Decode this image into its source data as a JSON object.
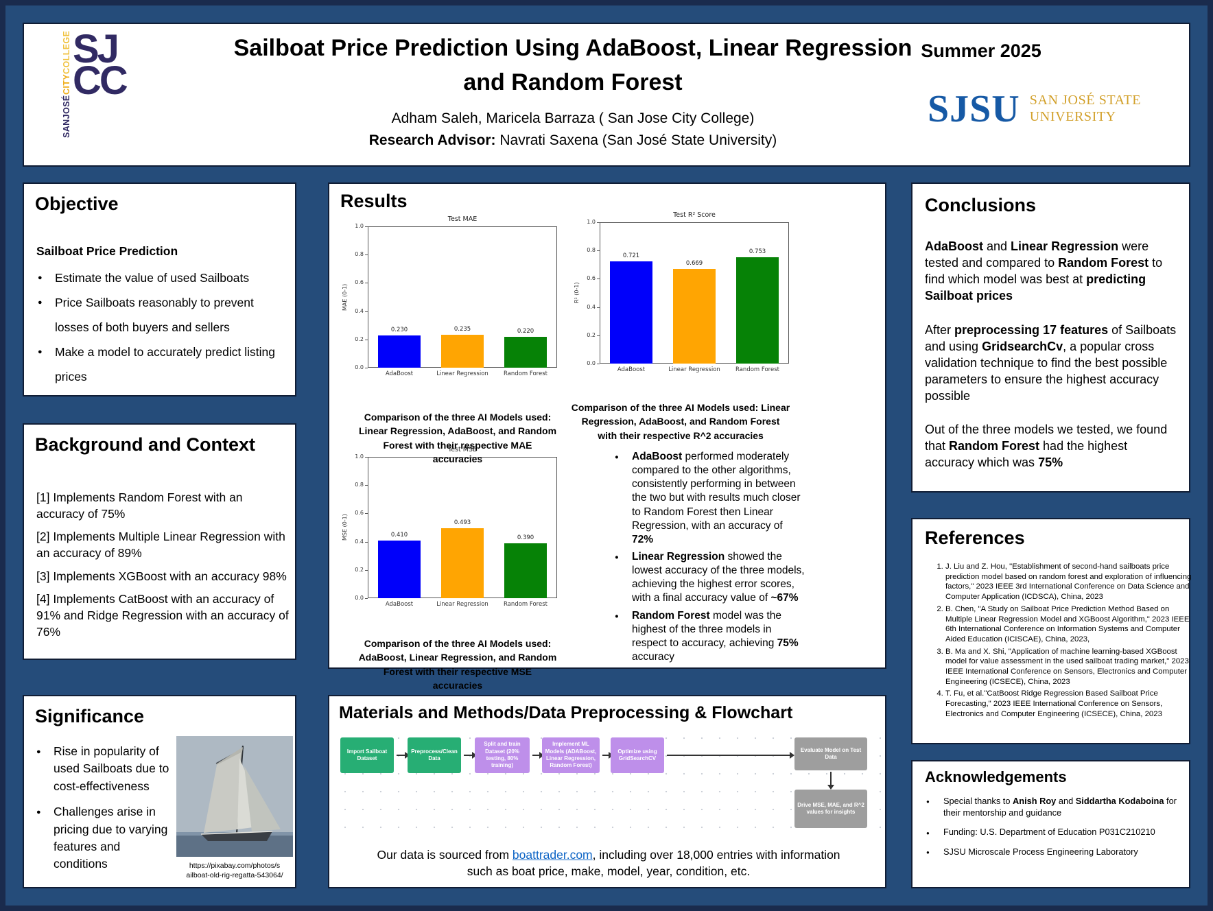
{
  "colors": {
    "poster_background": "#254C7A",
    "poster_border": "#1A2B4D",
    "link": "#0B63C5",
    "sjsu_blue": "#1659A5",
    "sjsu_gold": "#D2A02A",
    "sjcc_navy": "#312A63",
    "sjcc_gold": "#EFAF1F"
  },
  "header": {
    "title_line1": "Sailboat Price Prediction Using AdaBoost, Linear Regression",
    "title_line2": "and Random Forest",
    "authors": "Adham Saleh, Maricela Barraza ( San Jose City College)",
    "advisor": [
      {
        "t": "Research Advisor:",
        "b": 1
      },
      {
        "t": " Navrati Saxena (San José State University)",
        "b": 0
      }
    ],
    "term": "Summer 2025",
    "sjcc_logo": {
      "vert_1": "SANJOSÉ",
      "vert_2": "CITY",
      "vert_3": "COLLEGE",
      "big_1": "SJ",
      "big_2": "CC"
    },
    "sjsu_logo": {
      "mark": "SJSU",
      "line1": "SAN JOSÉ STATE",
      "line2": "UNIVERSITY"
    }
  },
  "left": {
    "objective": {
      "title": "Objective",
      "lead": "Sailboat Price Prediction",
      "bullets": [
        "Estimate the value of used Sailboats",
        "Price Sailboats reasonably to prevent losses of both buyers and sellers",
        "Make a model to accurately predict listing prices"
      ]
    },
    "background": {
      "title": "Background and Context",
      "items": [
        "[1] Implements Random Forest with an accuracy of 75%",
        "[2] Implements Multiple Linear Regression with an accuracy of 89%",
        "[3] Implements XGBoost with an accuracy 98%",
        "[4] Implements CatBoost with an accuracy of 91% and Ridge Regression with an accuracy of 76%"
      ]
    },
    "significance": {
      "title": "Significance",
      "bullets": [
        "Rise in popularity of used Sailboats due to cost-effectiveness",
        "Challenges arise in pricing due to varying features and conditions"
      ],
      "photo_caption_line1": "https://pixabay.com/photos/s",
      "photo_caption_line2": "ailboat-old-rig-regatta-543064/"
    }
  },
  "middle": {
    "results": {
      "title": "Results",
      "caption_mae": "Comparison of the three AI Models used: Linear Regression, AdaBoost, and Random Forest with their respective MAE accuracies",
      "caption_r2": "Comparison of the three AI Models used: Linear Regression, AdaBoost, and Random Forest with their respective R^2 accuracies",
      "caption_mse": "Comparison of the three AI Models used: AdaBoost, Linear Regression, and Random Forest with their respective MSE accuracies",
      "bullets": [
        {
          "segments": [
            {
              "t": "AdaBoost",
              "b": 1
            },
            {
              "t": " performed moderately compared to the other algorithms, consistently performing in between the two but with results much closer to Random Forest then Linear Regression, with an accuracy of ",
              "b": 0
            },
            {
              "t": "72%",
              "b": 1
            }
          ]
        },
        {
          "segments": [
            {
              "t": "Linear Regression",
              "b": 1
            },
            {
              "t": " showed the lowest accuracy of the three models, achieving the highest error scores, with a final accuracy value of ",
              "b": 0
            },
            {
              "t": "~67%",
              "b": 1
            }
          ]
        },
        {
          "segments": [
            {
              "t": "Random Forest",
              "b": 1
            },
            {
              "t": " model was the highest of the three models in respect to accuracy, achieving ",
              "b": 0
            },
            {
              "t": "75%",
              "b": 1
            },
            {
              "t": " accuracy",
              "b": 0
            }
          ]
        }
      ]
    },
    "materials": {
      "title": "Materials and Methods/Data Preprocessing & Flowchart",
      "flow_steps": [
        {
          "label": "Import Sailboat Dataset",
          "color": "#27AE74"
        },
        {
          "label": "Preprocess/Clean Data",
          "color": "#27AE74"
        },
        {
          "label": "Split and train Dataset (20% testing, 80% training)",
          "color": "#BE8FEA"
        },
        {
          "label": "Implement ML Models (ADABoost, Linear Regression, Random Forest)",
          "color": "#BE8FEA"
        },
        {
          "label": "Optimize using GridSearchCV",
          "color": "#BE8FEA"
        },
        {
          "label": "Evaluate Model on Test Data",
          "color": "#9E9E9E"
        },
        {
          "label": "Drive MSE, MAE, and R^2 values for insights",
          "color": "#9E9E9E"
        }
      ],
      "source_text": [
        {
          "t": "Our data is sourced from ",
          "b": 0
        },
        {
          "t": "boattrader.com",
          "b": 0,
          "link": 1
        },
        {
          "t": ", including over 18,000 entries with information such as boat price, make, model, year, condition, etc.",
          "b": 0
        }
      ]
    }
  },
  "right": {
    "conclusions": {
      "title": "Conclusions",
      "paragraphs": [
        {
          "segments": [
            {
              "t": "AdaBoost",
              "b": 1
            },
            {
              "t": " and ",
              "b": 0
            },
            {
              "t": "Linear Regression",
              "b": 1
            },
            {
              "t": " were tested and compared to ",
              "b": 0
            },
            {
              "t": "Random Forest",
              "b": 1
            },
            {
              "t": " to find which model was best at ",
              "b": 0
            },
            {
              "t": "predicting Sailboat prices",
              "b": 1
            }
          ]
        },
        {
          "segments": [
            {
              "t": "After ",
              "b": 0
            },
            {
              "t": "preprocessing 17 features",
              "b": 1
            },
            {
              "t": " of Sailboats and using ",
              "b": 0
            },
            {
              "t": "GridsearchCv",
              "b": 1
            },
            {
              "t": ", a popular cross validation technique to find the best possible parameters to ensure the highest accuracy possible",
              "b": 0
            }
          ]
        },
        {
          "segments": [
            {
              "t": "Out of the three models we tested, we found that ",
              "b": 0
            },
            {
              "t": "Random Forest",
              "b": 1
            },
            {
              "t": " had the highest accuracy which was ",
              "b": 0
            },
            {
              "t": "75%",
              "b": 1
            }
          ]
        }
      ]
    },
    "references": {
      "title": "References",
      "items": [
        "J. Liu and Z. Hou, \"Establishment of second-hand sailboats price prediction model based on random forest and exploration of influencing factors,\" 2023 IEEE 3rd International Conference on Data Science and Computer Application (ICDSCA), China, 2023",
        "B. Chen, \"A Study on Sailboat Price Prediction Method Based on Multiple Linear Regression Model and XGBoost Algorithm,\" 2023 IEEE 6th International Conference on Information Systems and Computer Aided Education (ICISCAE), China, 2023,",
        "B. Ma and X. Shi, \"Application of machine learning-based XGBoost model for value assessment in the used sailboat trading market,\" 2023 IEEE International Conference on Sensors, Electronics and Computer Engineering (ICSECE), China, 2023",
        "T. Fu, et al.\"CatBoost Ridge Regression Based Sailboat Price Forecasting,\" 2023 IEEE International Conference on Sensors, Electronics and Computer Engineering (ICSECE), China, 2023"
      ]
    },
    "acknowledgements": {
      "title": "Acknowledgements",
      "items": [
        {
          "segments": [
            {
              "t": "Special thanks to ",
              "b": 0
            },
            {
              "t": "Anish Roy",
              "b": 1
            },
            {
              "t": " and ",
              "b": 0
            },
            {
              "t": "Siddartha Kodaboina",
              "b": 1
            },
            {
              "t": " for their mentorship and guidance",
              "b": 0
            }
          ]
        },
        {
          "segments": [
            {
              "t": "Funding:  U.S. Department of Education P031C210210",
              "b": 0
            }
          ]
        },
        {
          "segments": [
            {
              "t": "SJSU Microscale Process Engineering Laboratory",
              "b": 0
            }
          ]
        }
      ]
    }
  },
  "chart_data": [
    {
      "type": "bar",
      "title": "Test MAE",
      "ylabel": "MAE (0-1)",
      "categories": [
        "AdaBoost",
        "Linear Regression",
        "Random Forest"
      ],
      "values": [
        0.23,
        0.235,
        0.22
      ],
      "colors": [
        "#0000FA",
        "#FFA502",
        "#068206"
      ],
      "ylim": [
        0,
        1
      ],
      "yticks": [
        0,
        0.2,
        0.4,
        0.6,
        0.8,
        1.0
      ],
      "legend": "none",
      "grid": false
    },
    {
      "type": "bar",
      "title": "Test R² Score",
      "ylabel": "R² (0-1)",
      "categories": [
        "AdaBoost",
        "Linear Regression",
        "Random Forest"
      ],
      "values": [
        0.721,
        0.669,
        0.753
      ],
      "colors": [
        "#0000FA",
        "#FFA502",
        "#068206"
      ],
      "ylim": [
        0,
        1
      ],
      "yticks": [
        0,
        0.2,
        0.4,
        0.6,
        0.8,
        1.0
      ],
      "legend": "none",
      "grid": false
    },
    {
      "type": "bar",
      "title": "Test MSE",
      "ylabel": "MSE (0-1)",
      "categories": [
        "AdaBoost",
        "Linear Regression",
        "Random Forest"
      ],
      "values": [
        0.41,
        0.493,
        0.39
      ],
      "colors": [
        "#0000FA",
        "#FFA502",
        "#068206"
      ],
      "ylim": [
        0,
        1
      ],
      "yticks": [
        0,
        0.2,
        0.4,
        0.6,
        0.8,
        1.0
      ],
      "legend": "none",
      "grid": false
    }
  ]
}
